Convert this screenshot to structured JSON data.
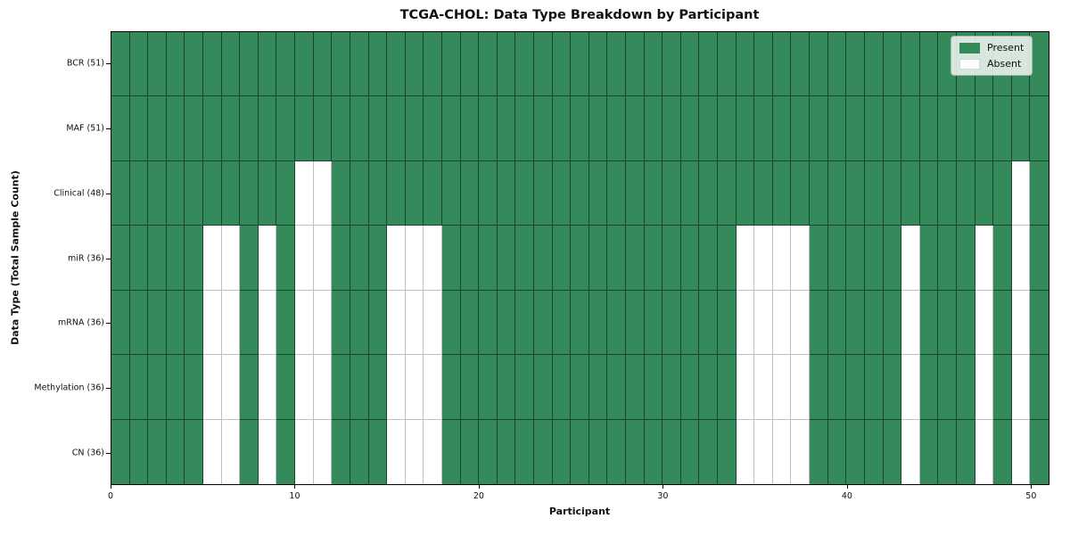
{
  "title": "TCGA-CHOL: Data Type Breakdown by Participant",
  "chart_data": {
    "type": "heatmap",
    "title": "TCGA-CHOL: Data Type Breakdown by Participant",
    "xlabel": "Participant",
    "ylabel": "Data Type (Total Sample Count)",
    "x_ticks": [
      0,
      10,
      20,
      30,
      40,
      50
    ],
    "x_range": [
      0,
      51
    ],
    "n_participants": 51,
    "grid": true,
    "legend_position": "upper right",
    "legend": [
      {
        "label": "Present",
        "state": "present"
      },
      {
        "label": "Absent",
        "state": "absent"
      }
    ],
    "cell_values": {
      "present": 1,
      "absent": 0
    },
    "rows": [
      {
        "label": "BCR (51)",
        "data_type": "BCR",
        "total_samples": 51,
        "absent_participants": []
      },
      {
        "label": "MAF (51)",
        "data_type": "MAF",
        "total_samples": 51,
        "absent_participants": []
      },
      {
        "label": "Clinical (48)",
        "data_type": "Clinical",
        "total_samples": 48,
        "absent_participants": [
          10,
          11,
          49
        ]
      },
      {
        "label": "miR (36)",
        "data_type": "miR",
        "total_samples": 36,
        "absent_participants": [
          5,
          6,
          8,
          10,
          11,
          15,
          16,
          17,
          34,
          35,
          36,
          37,
          43,
          47,
          49
        ]
      },
      {
        "label": "mRNA (36)",
        "data_type": "mRNA",
        "total_samples": 36,
        "absent_participants": [
          5,
          6,
          8,
          10,
          11,
          15,
          16,
          17,
          34,
          35,
          36,
          37,
          43,
          47,
          49
        ]
      },
      {
        "label": "Methylation (36)",
        "data_type": "Methylation",
        "total_samples": 36,
        "absent_participants": [
          5,
          6,
          8,
          10,
          11,
          15,
          16,
          17,
          34,
          35,
          36,
          37,
          43,
          47,
          49
        ]
      },
      {
        "label": "CN (36)",
        "data_type": "CN",
        "total_samples": 36,
        "absent_participants": [
          5,
          6,
          8,
          10,
          11,
          15,
          16,
          17,
          34,
          35,
          36,
          37,
          43,
          47,
          49
        ]
      }
    ],
    "colors": {
      "present": "#348a5a",
      "absent": "#ffffff",
      "grid_on_present": "rgba(0,0,0,0.50)",
      "grid_on_absent": "#bfbfbf",
      "spine": "#000000"
    }
  }
}
